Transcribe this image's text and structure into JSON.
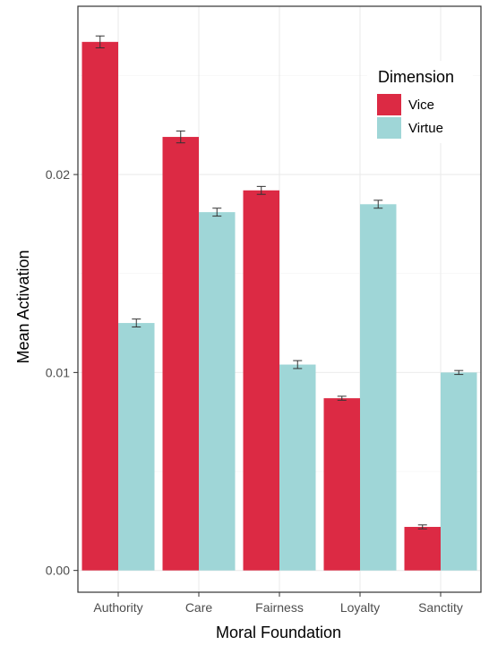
{
  "chart_data": {
    "type": "bar",
    "title": "",
    "xlabel": "Moral Foundation",
    "ylabel": "Mean Activation",
    "categories": [
      "Authority",
      "Care",
      "Fairness",
      "Loyalty",
      "Sanctity"
    ],
    "series": [
      {
        "name": "Vice",
        "color": "#dc2a44",
        "values": [
          0.0267,
          0.0219,
          0.0192,
          0.0087,
          0.0022
        ],
        "errors": [
          0.0003,
          0.0003,
          0.0002,
          0.0001,
          0.0001
        ]
      },
      {
        "name": "Virtue",
        "color": "#9fd6d7",
        "values": [
          0.0125,
          0.0181,
          0.0104,
          0.0185,
          0.01
        ],
        "errors": [
          0.0002,
          0.0002,
          0.0002,
          0.0002,
          0.0001
        ]
      }
    ],
    "ylim": [
      -0.0011,
      0.0285
    ],
    "yticks": [
      0.0,
      0.01,
      0.02
    ],
    "ytick_labels": [
      "0.00",
      "0.01",
      "0.02"
    ],
    "grid": true,
    "legend": {
      "title": "Dimension",
      "position": "top-right"
    }
  }
}
